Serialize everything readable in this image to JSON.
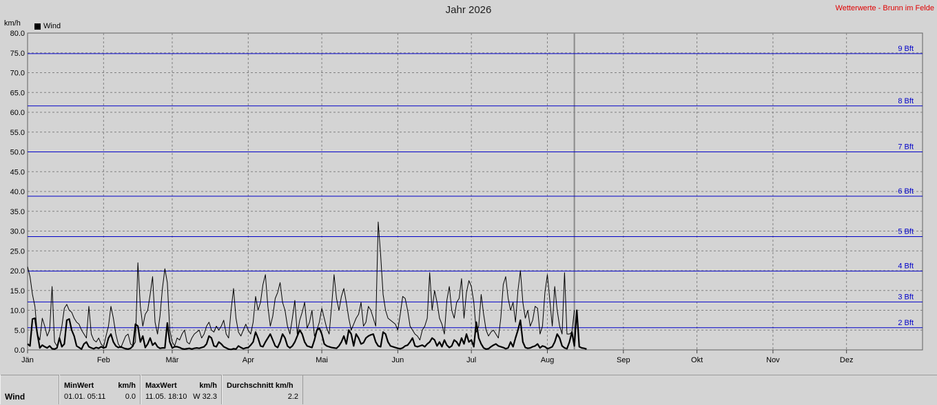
{
  "header": {
    "title": "Jahr 2026",
    "site": "Wetterwerte - Brunn im Felde",
    "unit": "km/h",
    "legend": "Wind"
  },
  "colors": {
    "series": "#000000",
    "beaufort": "#0000c8",
    "site": "#e00000",
    "grid": "#808080"
  },
  "chart_data": {
    "type": "line",
    "title": "Jahr 2026",
    "ylabel": "km/h",
    "ylim": [
      0,
      80
    ],
    "yticks": [
      "0.0",
      "5.0",
      "10.0",
      "15.0",
      "20.0",
      "25.0",
      "30.0",
      "35.0",
      "40.0",
      "45.0",
      "50.0",
      "55.0",
      "60.0",
      "65.0",
      "70.0",
      "75.0",
      "80.0"
    ],
    "months": [
      "Jän",
      "Feb",
      "Mär",
      "Apr",
      "Mai",
      "Jun",
      "Jul",
      "Aug",
      "Sep",
      "Okt",
      "Nov",
      "Dez"
    ],
    "grid": true,
    "legend_position": "top-left",
    "beaufort": [
      {
        "label": "2 Bft",
        "value": 5.6
      },
      {
        "label": "3 Bft",
        "value": 12.1
      },
      {
        "label": "4 Bft",
        "value": 19.9
      },
      {
        "label": "5 Bft",
        "value": 28.6
      },
      {
        "label": "6 Bft",
        "value": 38.8
      },
      {
        "label": "7 Bft",
        "value": 50.0
      },
      {
        "label": "8 Bft",
        "value": 61.6
      },
      {
        "label": "9 Bft",
        "value": 74.8
      }
    ],
    "series": [
      {
        "name": "Wind",
        "style": "gust",
        "values": [
          21.0,
          18.5,
          14.0,
          11.0,
          4.0,
          2.5,
          8.0,
          6.0,
          3.5,
          5.0,
          16.0,
          2.0,
          1.0,
          3.0,
          6.0,
          10.5,
          11.5,
          10.0,
          9.5,
          8.0,
          7.0,
          6.5,
          5.0,
          4.0,
          3.0,
          11.0,
          4.0,
          2.5,
          2.0,
          3.0,
          1.5,
          0.8,
          3.5,
          6.0,
          11.0,
          8.0,
          4.0,
          1.5,
          0.5,
          2.0,
          3.5,
          4.0,
          1.5,
          1.0,
          2.0,
          22.0,
          11.0,
          6.0,
          9.0,
          10.0,
          14.0,
          18.5,
          7.0,
          4.0,
          8.5,
          15.5,
          20.5,
          17.0,
          5.0,
          2.0,
          1.0,
          3.0,
          2.5,
          4.0,
          5.0,
          2.0,
          1.5,
          3.0,
          4.0,
          4.5,
          5.0,
          3.0,
          4.0,
          6.0,
          7.0,
          5.0,
          4.5,
          6.0,
          5.0,
          6.0,
          7.5,
          4.0,
          3.0,
          10.0,
          15.5,
          8.0,
          4.5,
          3.5,
          5.0,
          6.5,
          5.0,
          4.0,
          7.0,
          13.5,
          10.0,
          12.0,
          16.5,
          19.0,
          11.0,
          6.0,
          8.5,
          13.0,
          14.5,
          17.0,
          12.0,
          10.0,
          6.0,
          4.0,
          8.0,
          12.5,
          4.0,
          7.5,
          9.5,
          12.0,
          5.5,
          7.0,
          10.0,
          3.5,
          5.0,
          7.0,
          10.5,
          8.0,
          5.5,
          4.0,
          11.0,
          19.0,
          13.0,
          10.0,
          13.5,
          15.5,
          12.0,
          8.0,
          5.0,
          6.5,
          8.0,
          9.0,
          12.0,
          6.0,
          7.0,
          11.0,
          10.0,
          8.0,
          6.0,
          32.3,
          24.0,
          14.0,
          10.0,
          8.0,
          7.5,
          7.0,
          6.5,
          5.0,
          9.0,
          13.5,
          13.0,
          10.0,
          6.0,
          5.0,
          4.0,
          3.5,
          2.5,
          5.0,
          6.0,
          8.0,
          19.5,
          10.0,
          15.0,
          12.0,
          8.0,
          6.5,
          4.0,
          12.5,
          16.0,
          10.0,
          8.0,
          12.0,
          13.0,
          18.0,
          8.0,
          14.5,
          17.5,
          16.0,
          12.0,
          4.5,
          6.0,
          14.0,
          9.0,
          5.0,
          3.5,
          4.5,
          5.0,
          4.0,
          3.0,
          8.0,
          16.5,
          18.5,
          13.0,
          10.0,
          12.0,
          7.0,
          15.0,
          20.0,
          12.0,
          8.0,
          10.0,
          6.0,
          7.5,
          11.0,
          10.5,
          4.0,
          6.0,
          14.5,
          19.0,
          12.5,
          6.0,
          16.0,
          10.0,
          6.0,
          4.0,
          19.5,
          4.0,
          4.0,
          4.5,
          10.0
        ]
      },
      {
        "name": "Wind",
        "style": "mean",
        "values": [
          1.5,
          1.0,
          7.8,
          8.0,
          4.0,
          0.5,
          1.2,
          0.8,
          0.5,
          1.0,
          0.3,
          0.2,
          0.5,
          3.0,
          0.8,
          1.5,
          7.5,
          7.8,
          5.0,
          3.5,
          1.0,
          0.6,
          0.2,
          1.5,
          2.0,
          0.8,
          0.5,
          0.3,
          0.6,
          0.4,
          0.8,
          0.5,
          0.7,
          3.0,
          4.0,
          2.0,
          1.0,
          0.6,
          0.8,
          0.5,
          0.3,
          0.2,
          0.4,
          1.0,
          6.5,
          6.0,
          2.0,
          3.5,
          0.6,
          1.5,
          3.0,
          1.2,
          1.8,
          0.8,
          0.4,
          0.5,
          0.5,
          6.8,
          2.0,
          0.5,
          0.8,
          0.8,
          0.6,
          0.3,
          0.2,
          0.3,
          0.4,
          0.2,
          0.4,
          0.5,
          0.4,
          0.6,
          0.8,
          1.5,
          3.5,
          3.0,
          1.0,
          0.8,
          2.0,
          1.5,
          0.8,
          0.5,
          0.2,
          0.1,
          0.3,
          0.2,
          1.0,
          0.6,
          0.3,
          0.5,
          0.6,
          1.2,
          2.0,
          4.5,
          3.0,
          1.0,
          0.8,
          2.0,
          3.0,
          4.0,
          2.5,
          1.0,
          0.6,
          2.0,
          4.0,
          3.0,
          1.0,
          0.5,
          1.0,
          2.0,
          3.5,
          5.0,
          4.0,
          2.0,
          1.0,
          0.8,
          0.6,
          2.5,
          5.0,
          5.5,
          4.0,
          1.5,
          1.0,
          0.8,
          0.6,
          0.5,
          0.4,
          1.0,
          2.0,
          3.5,
          1.5,
          5.0,
          4.0,
          1.0,
          4.0,
          3.0,
          1.5,
          1.8,
          3.0,
          3.5,
          3.8,
          4.0,
          2.0,
          1.0,
          0.8,
          4.5,
          4.0,
          2.0,
          1.0,
          0.8,
          0.6,
          0.4,
          0.3,
          0.5,
          1.0,
          1.2,
          2.0,
          3.0,
          1.0,
          0.8,
          1.0,
          1.2,
          0.8,
          1.5,
          2.0,
          3.0,
          2.5,
          1.0,
          2.0,
          0.8,
          2.5,
          1.2,
          0.6,
          1.0,
          2.5,
          2.0,
          1.0,
          3.0,
          1.5,
          4.0,
          2.0,
          2.5,
          0.8,
          7.0,
          3.0,
          1.5,
          0.5,
          0.2,
          0.3,
          0.8,
          1.2,
          1.5,
          1.0,
          0.8,
          0.6,
          0.3,
          0.5,
          2.0,
          0.8,
          3.0,
          5.0,
          7.5,
          2.0,
          0.6,
          0.4,
          0.5,
          0.8,
          1.0,
          1.5,
          0.5,
          1.0,
          0.8,
          0.3,
          0.5,
          0.8,
          2.0,
          4.0,
          3.0,
          1.0,
          0.5,
          0.3,
          2.0,
          4.5,
          1.0,
          10.0,
          0.8,
          0.5,
          0.4,
          0.2
        ]
      }
    ]
  },
  "stats": {
    "row_label": "Wind",
    "min": {
      "head": "MinWert",
      "unit": "km/h",
      "time": "01.01.  05:11",
      "value": "0.0"
    },
    "max": {
      "head": "MaxWert",
      "unit": "km/h",
      "time": "11.05.  18:10",
      "value": "W 32.3"
    },
    "avg": {
      "head": "Durchschnitt km/h",
      "value": "2.2"
    }
  }
}
